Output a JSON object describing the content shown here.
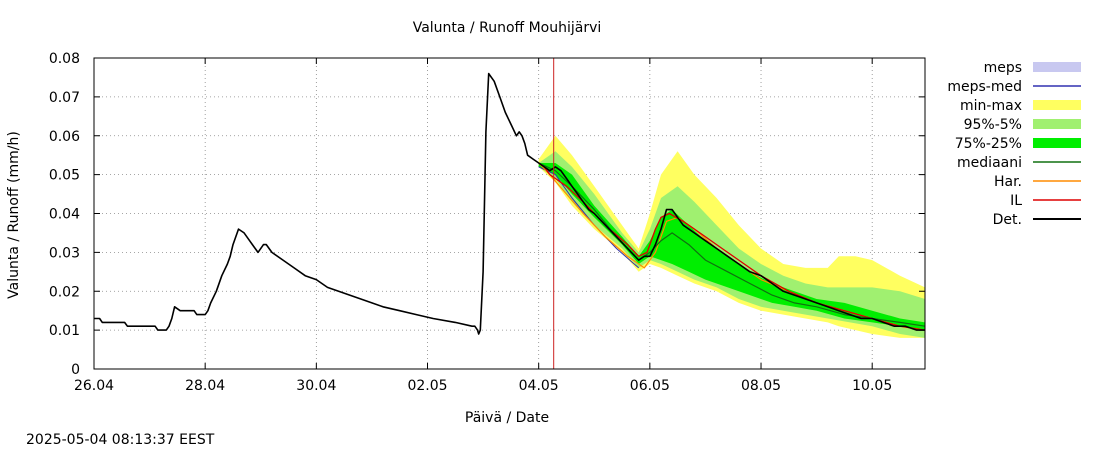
{
  "chart_data": {
    "type": "line",
    "title": "Valunta / Runoff  Mouhijärvi",
    "xlabel": "Päivä / Date",
    "ylabel": "Valunta / Runoff (mm/h)",
    "timestamp": "2025-05-04 08:13:37 EEST",
    "xlim": [
      26.0,
      40.95
    ],
    "ylim": [
      0,
      0.08
    ],
    "grid": true,
    "x_unit": "days from 26.04 (26.04 = 26.0, 04.05 = 34.0)",
    "x_ticks": [
      {
        "x": 26,
        "label": "26.04"
      },
      {
        "x": 28,
        "label": "28.04"
      },
      {
        "x": 30,
        "label": "30.04"
      },
      {
        "x": 32,
        "label": "02.05"
      },
      {
        "x": 34,
        "label": "04.05"
      },
      {
        "x": 36,
        "label": "06.05"
      },
      {
        "x": 38,
        "label": "08.05"
      },
      {
        "x": 40,
        "label": "10.05"
      }
    ],
    "y_ticks": [
      {
        "y": 0,
        "label": "0"
      },
      {
        "y": 0.01,
        "label": "0.01"
      },
      {
        "y": 0.02,
        "label": "0.02"
      },
      {
        "y": 0.03,
        "label": "0.03"
      },
      {
        "y": 0.04,
        "label": "0.04"
      },
      {
        "y": 0.05,
        "label": "0.05"
      },
      {
        "y": 0.06,
        "label": "0.06"
      },
      {
        "y": 0.07,
        "label": "0.07"
      },
      {
        "y": 0.08,
        "label": "0.08"
      }
    ],
    "now_line": {
      "x": 34.27,
      "color": "#cc2222"
    },
    "legend": [
      {
        "label": "meps",
        "kind": "box",
        "color": "#c8c8f0"
      },
      {
        "label": "meps-med",
        "kind": "line",
        "color": "#3030b0"
      },
      {
        "label": "min-max",
        "kind": "box",
        "color": "#ffff60"
      },
      {
        "label": "95%-5%",
        "kind": "box",
        "color": "#a0f070"
      },
      {
        "label": "75%-25%",
        "kind": "box",
        "color": "#00ee00"
      },
      {
        "label": "mediaani",
        "kind": "line",
        "color": "#107010"
      },
      {
        "label": "Har.",
        "kind": "line",
        "color": "#ff8c00"
      },
      {
        "label": "IL",
        "kind": "line",
        "color": "#dd0000"
      },
      {
        "label": "Det.",
        "kind": "line",
        "color": "#000000"
      }
    ],
    "bands": [
      {
        "name": "min-max",
        "color": "#ffff60",
        "x": [
          34.0,
          34.3,
          34.6,
          35.0,
          35.5,
          35.8,
          36.0,
          36.2,
          36.5,
          36.8,
          37.2,
          37.6,
          38.0,
          38.4,
          38.8,
          39.2,
          39.4,
          39.7,
          40.0,
          40.5,
          40.95
        ],
        "upper": [
          0.054,
          0.06,
          0.055,
          0.047,
          0.037,
          0.031,
          0.04,
          0.05,
          0.056,
          0.05,
          0.044,
          0.037,
          0.031,
          0.027,
          0.026,
          0.026,
          0.029,
          0.029,
          0.028,
          0.024,
          0.021
        ],
        "lower": [
          0.052,
          0.048,
          0.042,
          0.036,
          0.03,
          0.025,
          0.027,
          0.026,
          0.024,
          0.022,
          0.02,
          0.017,
          0.015,
          0.014,
          0.013,
          0.012,
          0.011,
          0.01,
          0.009,
          0.008,
          0.008
        ]
      },
      {
        "name": "95%-5%",
        "color": "#a0f070",
        "x": [
          34.0,
          34.3,
          34.6,
          35.0,
          35.5,
          35.8,
          36.0,
          36.2,
          36.5,
          36.8,
          37.2,
          37.6,
          38.0,
          38.4,
          38.8,
          39.2,
          39.6,
          40.0,
          40.5,
          40.95
        ],
        "upper": [
          0.053,
          0.056,
          0.052,
          0.045,
          0.035,
          0.03,
          0.036,
          0.044,
          0.047,
          0.043,
          0.037,
          0.031,
          0.027,
          0.024,
          0.022,
          0.021,
          0.021,
          0.021,
          0.02,
          0.018
        ],
        "lower": [
          0.052,
          0.049,
          0.043,
          0.037,
          0.031,
          0.026,
          0.028,
          0.027,
          0.025,
          0.023,
          0.021,
          0.018,
          0.016,
          0.015,
          0.014,
          0.013,
          0.012,
          0.011,
          0.009,
          0.008
        ]
      },
      {
        "name": "75%-25%",
        "color": "#00ee00",
        "x": [
          34.0,
          34.3,
          34.6,
          35.0,
          35.5,
          35.8,
          36.0,
          36.2,
          36.4,
          36.7,
          37.0,
          37.4,
          37.8,
          38.2,
          38.6,
          39.0,
          39.5,
          40.0,
          40.5,
          40.95
        ],
        "upper": [
          0.053,
          0.053,
          0.05,
          0.042,
          0.034,
          0.029,
          0.033,
          0.039,
          0.041,
          0.037,
          0.033,
          0.029,
          0.025,
          0.022,
          0.02,
          0.018,
          0.017,
          0.015,
          0.013,
          0.012
        ],
        "lower": [
          0.052,
          0.05,
          0.045,
          0.039,
          0.032,
          0.027,
          0.029,
          0.028,
          0.027,
          0.025,
          0.023,
          0.021,
          0.019,
          0.017,
          0.016,
          0.015,
          0.013,
          0.012,
          0.011,
          0.01
        ]
      }
    ],
    "series": [
      {
        "name": "meps-med",
        "color": "#3030b0",
        "width": 1,
        "x": [
          34.0,
          34.3,
          34.6,
          35.0,
          35.4,
          35.8
        ],
        "y": [
          0.052,
          0.05,
          0.044,
          0.037,
          0.031,
          0.026
        ]
      },
      {
        "name": "Har.",
        "color": "#ff8c00",
        "width": 1.2,
        "x": [
          34.0,
          34.2,
          34.5,
          34.8,
          35.2,
          35.6,
          35.9,
          36.1,
          36.3,
          36.5,
          36.8,
          37.2,
          37.6,
          38.0,
          38.5,
          39.0,
          39.5,
          40.0,
          40.5,
          40.95
        ],
        "y": [
          0.053,
          0.05,
          0.045,
          0.04,
          0.034,
          0.029,
          0.026,
          0.03,
          0.038,
          0.039,
          0.036,
          0.031,
          0.027,
          0.023,
          0.02,
          0.017,
          0.015,
          0.013,
          0.011,
          0.01
        ]
      },
      {
        "name": "IL",
        "color": "#dd0000",
        "width": 1.3,
        "x": [
          34.0,
          34.1,
          34.2,
          34.3,
          34.5,
          34.8,
          35.2,
          35.6,
          35.8,
          35.95,
          36.1,
          36.2,
          36.35,
          36.6,
          36.9,
          37.3,
          37.7,
          38.0,
          38.5,
          39.0,
          39.5,
          40.0,
          40.5,
          40.95
        ],
        "y": [
          0.053,
          0.052,
          0.05,
          0.049,
          0.047,
          0.043,
          0.037,
          0.032,
          0.029,
          0.03,
          0.036,
          0.039,
          0.04,
          0.038,
          0.035,
          0.031,
          0.027,
          0.024,
          0.02,
          0.017,
          0.015,
          0.013,
          0.011,
          0.01
        ]
      },
      {
        "name": "mediaani",
        "color": "#107010",
        "width": 1.2,
        "x": [
          34.0,
          34.3,
          34.6,
          35.0,
          35.4,
          35.8,
          36.0,
          36.2,
          36.4,
          36.7,
          37.0,
          37.4,
          37.8,
          38.2,
          38.6,
          39.0,
          39.5,
          40.0,
          40.5,
          40.95
        ],
        "y": [
          0.053,
          0.051,
          0.047,
          0.041,
          0.034,
          0.028,
          0.03,
          0.033,
          0.035,
          0.032,
          0.028,
          0.025,
          0.022,
          0.019,
          0.017,
          0.016,
          0.014,
          0.013,
          0.012,
          0.011
        ]
      },
      {
        "name": "Det.",
        "color": "#000000",
        "width": 1.6,
        "x": [
          26.0,
          26.1,
          26.15,
          26.55,
          26.6,
          27.1,
          27.15,
          27.3,
          27.35,
          27.4,
          27.45,
          27.55,
          27.6,
          27.8,
          27.85,
          28.0,
          28.05,
          28.1,
          28.2,
          28.3,
          28.4,
          28.45,
          28.5,
          28.6,
          28.7,
          28.8,
          28.85,
          28.9,
          28.95,
          29.05,
          29.1,
          29.2,
          29.4,
          29.6,
          29.8,
          30.0,
          30.2,
          30.4,
          30.6,
          30.8,
          31.0,
          31.2,
          31.5,
          31.8,
          32.1,
          32.5,
          32.8,
          32.85,
          32.9,
          32.92,
          32.95,
          33.0,
          33.05,
          33.1,
          33.2,
          33.3,
          33.4,
          33.5,
          33.6,
          33.65,
          33.7,
          33.75,
          33.8,
          33.9,
          34.0,
          34.1,
          34.2,
          34.3,
          34.4,
          34.5,
          34.6,
          34.7,
          34.8,
          34.9,
          35.0,
          35.2,
          35.4,
          35.6,
          35.8,
          35.9,
          36.0,
          36.1,
          36.2,
          36.3,
          36.4,
          36.5,
          36.6,
          36.8,
          37.0,
          37.2,
          37.4,
          37.6,
          37.8,
          38.0,
          38.2,
          38.4,
          38.6,
          38.8,
          39.0,
          39.2,
          39.4,
          39.6,
          39.8,
          40.0,
          40.2,
          40.4,
          40.6,
          40.8,
          40.95
        ],
        "y": [
          0.013,
          0.013,
          0.012,
          0.012,
          0.011,
          0.011,
          0.01,
          0.01,
          0.011,
          0.013,
          0.016,
          0.015,
          0.015,
          0.015,
          0.014,
          0.014,
          0.015,
          0.017,
          0.02,
          0.024,
          0.027,
          0.029,
          0.032,
          0.036,
          0.035,
          0.033,
          0.032,
          0.031,
          0.03,
          0.032,
          0.032,
          0.03,
          0.028,
          0.026,
          0.024,
          0.023,
          0.021,
          0.02,
          0.019,
          0.018,
          0.017,
          0.016,
          0.015,
          0.014,
          0.013,
          0.012,
          0.011,
          0.011,
          0.01,
          0.009,
          0.01,
          0.025,
          0.061,
          0.076,
          0.074,
          0.07,
          0.066,
          0.063,
          0.06,
          0.061,
          0.06,
          0.058,
          0.055,
          0.054,
          0.053,
          0.052,
          0.051,
          0.052,
          0.051,
          0.049,
          0.047,
          0.045,
          0.043,
          0.041,
          0.04,
          0.037,
          0.034,
          0.031,
          0.028,
          0.029,
          0.029,
          0.032,
          0.036,
          0.041,
          0.041,
          0.039,
          0.037,
          0.035,
          0.033,
          0.031,
          0.029,
          0.027,
          0.025,
          0.024,
          0.022,
          0.02,
          0.019,
          0.018,
          0.017,
          0.016,
          0.015,
          0.014,
          0.013,
          0.013,
          0.012,
          0.011,
          0.011,
          0.01,
          0.01
        ]
      }
    ]
  }
}
